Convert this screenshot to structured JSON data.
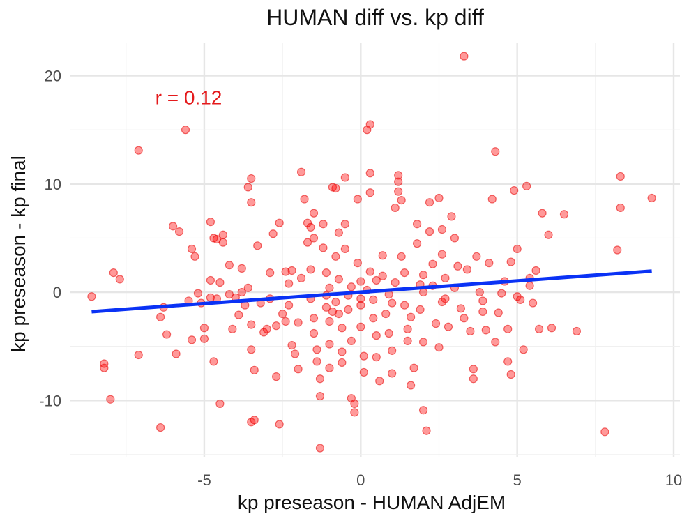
{
  "chart_data": {
    "type": "scatter",
    "title": "HUMAN diff vs. kp diff",
    "xlabel": "kp preseason - HUMAN AdjEM",
    "ylabel": "kp preseason - kp final",
    "xlim": [
      -9.3,
      10.2
    ],
    "ylim": [
      -15.2,
      23.0
    ],
    "x_ticks": [
      -5,
      0,
      5,
      10
    ],
    "y_ticks": [
      -10,
      0,
      10,
      20
    ],
    "x_tick_labels": [
      "-5",
      "0",
      "5",
      "10"
    ],
    "y_tick_labels": [
      "-10",
      "0",
      "10",
      "20"
    ],
    "grid": true,
    "legend": "none",
    "annotation": {
      "text": "r = 0.12",
      "x": -5.5,
      "y": 18.0,
      "color": "#e41a1c"
    },
    "point_color": "#ff0000",
    "line_color": "#0a32f5",
    "regression_line": {
      "x": [
        -8.6,
        9.3
      ],
      "y": [
        -1.8,
        1.95
      ]
    },
    "points": [
      [
        -8.6,
        -0.4
      ],
      [
        -7.9,
        1.8
      ],
      [
        -7.7,
        1.2
      ],
      [
        -8.2,
        -6.6
      ],
      [
        -8.2,
        -7.0
      ],
      [
        -8.0,
        -9.9
      ],
      [
        -7.1,
        13.1
      ],
      [
        -7.1,
        -5.8
      ],
      [
        -6.4,
        -2.3
      ],
      [
        -6.3,
        -1.4
      ],
      [
        -6.2,
        -3.9
      ],
      [
        -6.4,
        -12.5
      ],
      [
        -6.0,
        6.1
      ],
      [
        -5.8,
        5.6
      ],
      [
        -5.9,
        -5.7
      ],
      [
        -5.6,
        15.0
      ],
      [
        -5.4,
        4.0
      ],
      [
        -5.3,
        3.3
      ],
      [
        -5.5,
        -0.8
      ],
      [
        -5.4,
        -4.4
      ],
      [
        -5.2,
        -0.1
      ],
      [
        -5.1,
        -1.0
      ],
      [
        -5.0,
        -3.3
      ],
      [
        -5.0,
        -4.3
      ],
      [
        -4.8,
        6.5
      ],
      [
        -4.7,
        5.0
      ],
      [
        -4.8,
        1.1
      ],
      [
        -4.6,
        4.9
      ],
      [
        -4.6,
        -0.6
      ],
      [
        -4.5,
        -10.3
      ],
      [
        -4.7,
        -6.4
      ],
      [
        -4.4,
        5.3
      ],
      [
        -4.2,
        2.5
      ],
      [
        -4.4,
        4.6
      ],
      [
        -4.2,
        -0.2
      ],
      [
        -4.0,
        -0.5
      ],
      [
        -4.1,
        -3.4
      ],
      [
        -3.8,
        2.2
      ],
      [
        -3.8,
        0.0
      ],
      [
        -3.7,
        -1.2
      ],
      [
        -3.6,
        9.7
      ],
      [
        -3.5,
        10.5
      ],
      [
        -3.5,
        8.3
      ],
      [
        -3.6,
        0.4
      ],
      [
        -3.5,
        -3.0
      ],
      [
        -3.5,
        -5.3
      ],
      [
        -3.4,
        -7.2
      ],
      [
        -3.5,
        -12.0
      ],
      [
        -3.4,
        -11.8
      ],
      [
        -3.3,
        4.3
      ],
      [
        -3.2,
        -1.0
      ],
      [
        -3.1,
        -3.7
      ],
      [
        -3.0,
        -3.4
      ],
      [
        -2.9,
        1.8
      ],
      [
        -2.8,
        5.4
      ],
      [
        -2.7,
        -3.1
      ],
      [
        -2.7,
        -7.8
      ],
      [
        -2.6,
        6.4
      ],
      [
        -2.5,
        -2.0
      ],
      [
        -2.6,
        -12.2
      ],
      [
        -2.4,
        1.9
      ],
      [
        -2.3,
        0.8
      ],
      [
        -2.3,
        -1.2
      ],
      [
        -2.2,
        2.0
      ],
      [
        -2.2,
        -4.9
      ],
      [
        -2.1,
        -5.7
      ],
      [
        -2.0,
        -7.1
      ],
      [
        -2.0,
        -2.8
      ],
      [
        -1.9,
        11.1
      ],
      [
        -1.8,
        8.6
      ],
      [
        -1.7,
        6.4
      ],
      [
        -1.7,
        4.6
      ],
      [
        -1.6,
        6.0
      ],
      [
        -1.6,
        2.1
      ],
      [
        -1.5,
        7.3
      ],
      [
        -1.5,
        5.0
      ],
      [
        -1.6,
        -0.6
      ],
      [
        -1.5,
        -2.4
      ],
      [
        -1.5,
        -3.8
      ],
      [
        -1.4,
        -5.3
      ],
      [
        -1.4,
        -6.4
      ],
      [
        -1.3,
        -8.0
      ],
      [
        -1.3,
        -9.6
      ],
      [
        -1.2,
        6.3
      ],
      [
        -1.2,
        4.1
      ],
      [
        -1.1,
        1.8
      ],
      [
        -1.1,
        -0.3
      ],
      [
        -1.1,
        -1.4
      ],
      [
        -1.0,
        -2.7
      ],
      [
        -1.0,
        -4.8
      ],
      [
        -1.0,
        -7.0
      ],
      [
        -0.9,
        9.7
      ],
      [
        -0.8,
        9.6
      ],
      [
        -0.8,
        3.3
      ],
      [
        -0.8,
        -0.9
      ],
      [
        -0.7,
        5.5
      ],
      [
        -0.7,
        1.2
      ],
      [
        -0.7,
        -2.0
      ],
      [
        -0.6,
        -3.3
      ],
      [
        -0.6,
        -5.5
      ],
      [
        -0.6,
        -6.5
      ],
      [
        -0.5,
        10.6
      ],
      [
        -0.5,
        6.3
      ],
      [
        -0.5,
        4.0
      ],
      [
        -0.4,
        -0.3
      ],
      [
        -0.4,
        -1.6
      ],
      [
        -0.3,
        -4.5
      ],
      [
        -0.3,
        -9.8
      ],
      [
        -0.2,
        -10.3
      ],
      [
        -0.2,
        -11.1
      ],
      [
        -1.3,
        -14.4
      ],
      [
        -0.1,
        8.6
      ],
      [
        -0.1,
        2.7
      ],
      [
        0.0,
        1.0
      ],
      [
        0.0,
        -1.2
      ],
      [
        0.0,
        -3.2
      ],
      [
        0.1,
        -5.9
      ],
      [
        0.1,
        -7.4
      ],
      [
        0.2,
        15.0
      ],
      [
        0.3,
        15.5
      ],
      [
        0.3,
        11.0
      ],
      [
        0.3,
        9.2
      ],
      [
        0.3,
        1.9
      ],
      [
        0.4,
        -0.7
      ],
      [
        0.4,
        -2.4
      ],
      [
        0.5,
        -4.0
      ],
      [
        0.5,
        -6.0
      ],
      [
        0.6,
        -8.2
      ],
      [
        0.7,
        1.5
      ],
      [
        0.7,
        3.4
      ],
      [
        0.8,
        -2.0
      ],
      [
        0.9,
        -3.8
      ],
      [
        1.0,
        -5.4
      ],
      [
        1.0,
        -7.5
      ],
      [
        1.1,
        7.8
      ],
      [
        1.2,
        10.8
      ],
      [
        1.2,
        10.2
      ],
      [
        1.2,
        9.3
      ],
      [
        1.3,
        8.5
      ],
      [
        1.3,
        3.3
      ],
      [
        1.4,
        1.8
      ],
      [
        1.4,
        -1.2
      ],
      [
        1.5,
        -3.4
      ],
      [
        1.5,
        -4.5
      ],
      [
        1.6,
        -8.6
      ],
      [
        1.7,
        -7.0
      ],
      [
        1.8,
        6.3
      ],
      [
        1.8,
        4.5
      ],
      [
        1.9,
        0.7
      ],
      [
        1.9,
        -1.6
      ],
      [
        2.0,
        -4.6
      ],
      [
        2.0,
        -10.9
      ],
      [
        2.1,
        -12.8
      ],
      [
        2.2,
        8.3
      ],
      [
        2.2,
        5.6
      ],
      [
        2.3,
        2.6
      ],
      [
        2.3,
        0.6
      ],
      [
        2.4,
        -2.9
      ],
      [
        2.5,
        -5.1
      ],
      [
        2.5,
        8.7
      ],
      [
        2.6,
        5.8
      ],
      [
        2.6,
        3.5
      ],
      [
        2.7,
        1.3
      ],
      [
        2.7,
        -0.6
      ],
      [
        2.8,
        -3.2
      ],
      [
        2.9,
        7.0
      ],
      [
        3.0,
        5.0
      ],
      [
        3.1,
        2.4
      ],
      [
        3.2,
        -1.5
      ],
      [
        3.3,
        21.8
      ],
      [
        3.4,
        2.1
      ],
      [
        3.5,
        -3.6
      ],
      [
        3.6,
        -7.1
      ],
      [
        3.6,
        -8.0
      ],
      [
        3.7,
        3.3
      ],
      [
        3.8,
        0.0
      ],
      [
        3.9,
        -1.8
      ],
      [
        4.0,
        -3.5
      ],
      [
        4.1,
        2.7
      ],
      [
        4.2,
        8.6
      ],
      [
        4.3,
        13.0
      ],
      [
        4.3,
        -4.6
      ],
      [
        4.5,
        -0.1
      ],
      [
        4.6,
        1.0
      ],
      [
        4.7,
        -3.4
      ],
      [
        4.7,
        -6.4
      ],
      [
        4.8,
        -7.6
      ],
      [
        4.8,
        2.8
      ],
      [
        4.9,
        9.4
      ],
      [
        5.0,
        4.0
      ],
      [
        5.1,
        -0.7
      ],
      [
        5.2,
        -5.3
      ],
      [
        5.3,
        9.8
      ],
      [
        5.4,
        1.3
      ],
      [
        5.5,
        -1.0
      ],
      [
        5.6,
        2.0
      ],
      [
        5.7,
        -3.4
      ],
      [
        5.8,
        7.3
      ],
      [
        6.0,
        5.3
      ],
      [
        6.1,
        -3.3
      ],
      [
        6.5,
        7.2
      ],
      [
        6.9,
        -3.6
      ],
      [
        7.8,
        -12.9
      ],
      [
        8.2,
        3.9
      ],
      [
        8.3,
        10.7
      ],
      [
        8.3,
        7.8
      ],
      [
        9.3,
        8.7
      ],
      [
        -4.8,
        -0.5
      ],
      [
        -4.5,
        0.9
      ],
      [
        -3.9,
        -2.1
      ],
      [
        -2.9,
        -0.6
      ],
      [
        -2.4,
        -2.7
      ],
      [
        -1.9,
        1.3
      ],
      [
        -0.9,
        -1.8
      ],
      [
        -0.3,
        0.5
      ],
      [
        0.2,
        0.2
      ],
      [
        0.5,
        1.1
      ],
      [
        0.9,
        -0.2
      ],
      [
        1.1,
        0.9
      ],
      [
        1.6,
        -2.3
      ],
      [
        2.0,
        1.6
      ],
      [
        2.6,
        -0.9
      ],
      [
        3.0,
        0.4
      ],
      [
        3.3,
        -2.4
      ],
      [
        3.9,
        -0.8
      ],
      [
        4.4,
        -1.9
      ],
      [
        5.0,
        -0.4
      ],
      [
        5.4,
        0.6
      ],
      [
        -1.0,
        0.4
      ],
      [
        0.0,
        -0.6
      ],
      [
        1.0,
        -1.0
      ],
      [
        2.0,
        0.0
      ]
    ]
  }
}
